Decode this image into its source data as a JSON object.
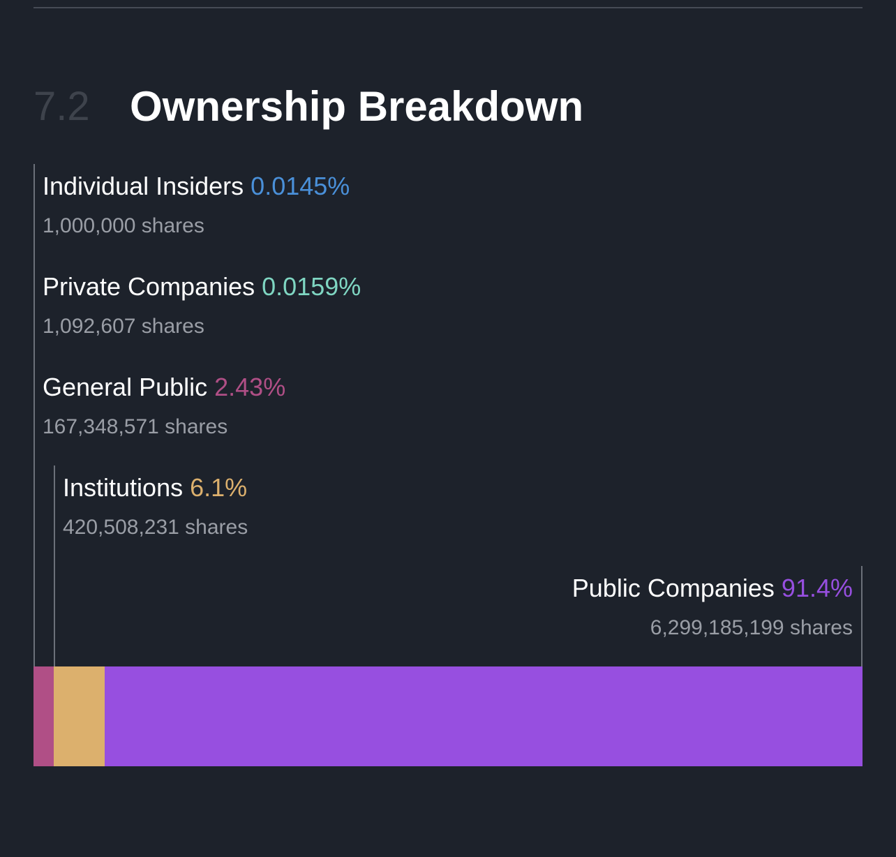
{
  "section": {
    "number": "7.2",
    "title": "Ownership Breakdown"
  },
  "chart_data": {
    "type": "bar",
    "orientation": "horizontal-stacked",
    "title": "Ownership Breakdown",
    "series": [
      {
        "name": "Individual Insiders",
        "percent_label": "0.0145%",
        "value": 0.0145,
        "shares": "1,000,000 shares",
        "color": "#4a90d9"
      },
      {
        "name": "Private Companies",
        "percent_label": "0.0159%",
        "value": 0.0159,
        "shares": "1,092,607 shares",
        "color": "#7fd6c2"
      },
      {
        "name": "General Public",
        "percent_label": "2.43%",
        "value": 2.43,
        "shares": "167,348,571 shares",
        "color": "#b04f86"
      },
      {
        "name": "Institutions",
        "percent_label": "6.1%",
        "value": 6.1,
        "shares": "420,508,231 shares",
        "color": "#dcb06d"
      },
      {
        "name": "Public Companies",
        "percent_label": "91.4%",
        "value": 91.4,
        "shares": "6,299,185,199 shares",
        "color": "#974fe0"
      }
    ],
    "xlim": [
      0,
      100
    ]
  }
}
